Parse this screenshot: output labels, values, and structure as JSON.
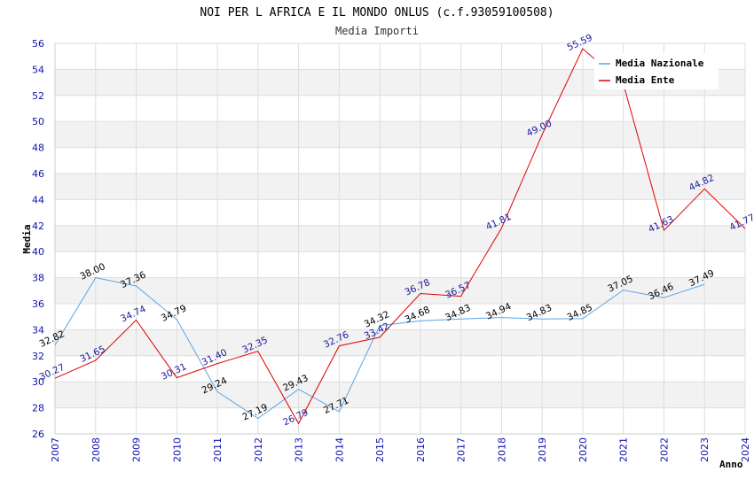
{
  "chart_data": {
    "type": "line",
    "title": "NOI PER L AFRICA E IL MONDO ONLUS (c.f.93059100508)",
    "subtitle": "Media Importi",
    "xlabel": "Anno",
    "ylabel": "Media",
    "ylim": [
      26,
      56
    ],
    "y_ticks": [
      "26",
      "28",
      "30",
      "32",
      "34",
      "36",
      "38",
      "40",
      "42",
      "44",
      "46",
      "48",
      "50",
      "52",
      "54",
      "56"
    ],
    "x": [
      "2007",
      "2008",
      "2009",
      "2010",
      "2011",
      "2012",
      "2013",
      "2014",
      "2015",
      "2016",
      "2017",
      "2018",
      "2019",
      "2020",
      "2021",
      "2022",
      "2023",
      "2024"
    ],
    "grid": true,
    "legend_position": "top-right",
    "series": [
      {
        "name": "Media Nazionale",
        "color": "#5ba5e6",
        "label_color": "#000000",
        "values": [
          32.82,
          38.0,
          37.36,
          34.79,
          29.24,
          27.19,
          29.43,
          27.71,
          34.32,
          34.68,
          34.83,
          34.94,
          34.83,
          34.85,
          37.05,
          36.46,
          37.49,
          null
        ],
        "labels": [
          "32.82",
          "38.00",
          "37.36",
          "34.79",
          "29.24",
          "27.19",
          "29.43",
          "27.71",
          "34.32",
          "34.68",
          "34.83",
          "34.94",
          "34.83",
          "34.85",
          "37.05",
          "36.46",
          "37.49",
          null
        ]
      },
      {
        "name": "Media Ente",
        "color": "#e00000",
        "label_color": "#1a1a9a",
        "values": [
          30.27,
          31.65,
          34.74,
          30.31,
          31.4,
          32.35,
          26.79,
          32.76,
          33.42,
          36.78,
          36.57,
          41.81,
          49.0,
          55.59,
          52.9,
          41.63,
          44.82,
          41.77
        ],
        "labels": [
          "30.27",
          "31.65",
          "34.74",
          "30.31",
          "31.40",
          "32.35",
          "26.79",
          "32.76",
          "33.42",
          "36.78",
          "36.57",
          "41.81",
          "49.00",
          "55.59",
          null,
          "41.63",
          "44.82",
          "41.77"
        ]
      }
    ]
  }
}
